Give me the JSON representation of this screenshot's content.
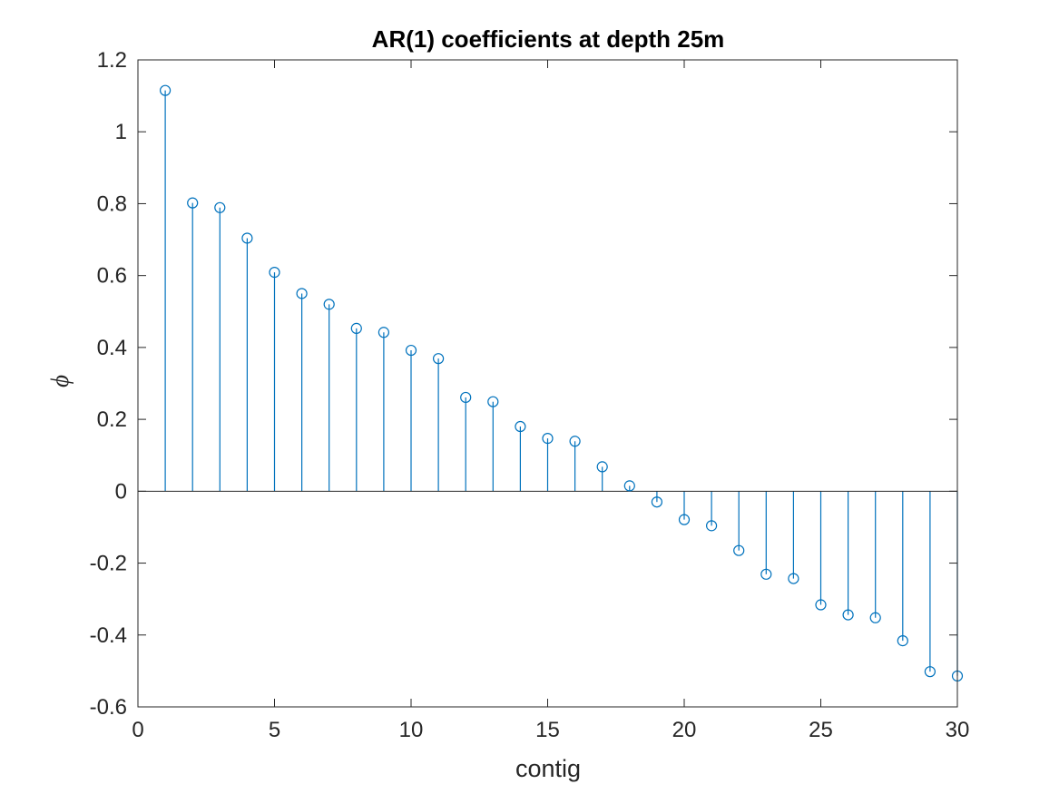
{
  "chart_data": {
    "type": "stem",
    "title": "AR(1) coefficients at depth 25m",
    "xlabel": "contig",
    "ylabel": "ϕ",
    "xlim": [
      0,
      30
    ],
    "ylim": [
      -0.6,
      1.2
    ],
    "xticks": [
      0,
      5,
      10,
      15,
      20,
      25,
      30
    ],
    "yticks": [
      -0.6,
      -0.4,
      -0.2,
      0,
      0.2,
      0.4,
      0.6,
      0.8,
      1,
      1.2
    ],
    "xtick_labels": [
      "0",
      "5",
      "10",
      "15",
      "20",
      "25",
      "30"
    ],
    "ytick_labels": [
      "-0.6",
      "-0.4",
      "-0.2",
      "0",
      "0.2",
      "0.4",
      "0.6",
      "0.8",
      "1",
      "1.2"
    ],
    "baseline": 0,
    "grid": false,
    "box": true,
    "marker": "circle-open",
    "color": "#0072BD",
    "axis_color": "#262626",
    "x": [
      1,
      2,
      3,
      4,
      5,
      6,
      7,
      8,
      9,
      10,
      11,
      12,
      13,
      14,
      15,
      16,
      17,
      18,
      19,
      20,
      21,
      22,
      23,
      24,
      25,
      26,
      27,
      28,
      29,
      30
    ],
    "values": [
      1.115,
      0.802,
      0.789,
      0.704,
      0.609,
      0.55,
      0.52,
      0.453,
      0.442,
      0.392,
      0.369,
      0.261,
      0.249,
      0.18,
      0.147,
      0.139,
      0.068,
      0.015,
      -0.03,
      -0.079,
      -0.096,
      -0.165,
      -0.231,
      -0.243,
      -0.316,
      -0.344,
      -0.352,
      -0.416,
      -0.502,
      -0.514
    ]
  }
}
